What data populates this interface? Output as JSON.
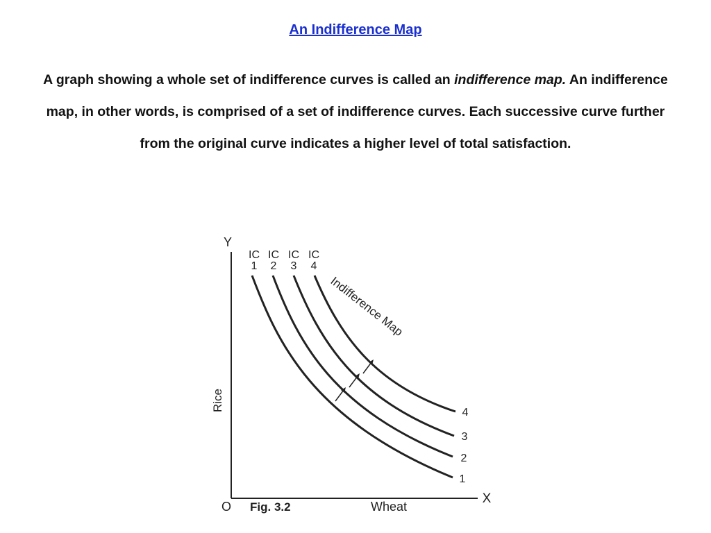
{
  "slide": {
    "title": "An Indifference Map",
    "paragraph_before": "A graph showing a whole set of indifference curves is called an ",
    "paragraph_emphasis": "indifference map.",
    "paragraph_after": " An indifference map, in other words, is comprised of a set of indifference curves. Each successive curve further from the original curve indicates a higher level of total satisfaction."
  },
  "figure": {
    "y_axis_letter": "Y",
    "x_axis_letter": "X",
    "origin_label": "O",
    "caption": "Fig. 3.2",
    "x_axis_label": "Wheat",
    "y_axis_label": "Rice",
    "map_label": "Indifference Map",
    "curves": [
      {
        "top_label_1": "IC",
        "top_label_2": "1",
        "end_label": "1"
      },
      {
        "top_label_1": "IC",
        "top_label_2": "2",
        "end_label": "2"
      },
      {
        "top_label_1": "IC",
        "top_label_2": "3",
        "end_label": "3"
      },
      {
        "top_label_1": "IC",
        "top_label_2": "4",
        "end_label": "4"
      }
    ]
  }
}
